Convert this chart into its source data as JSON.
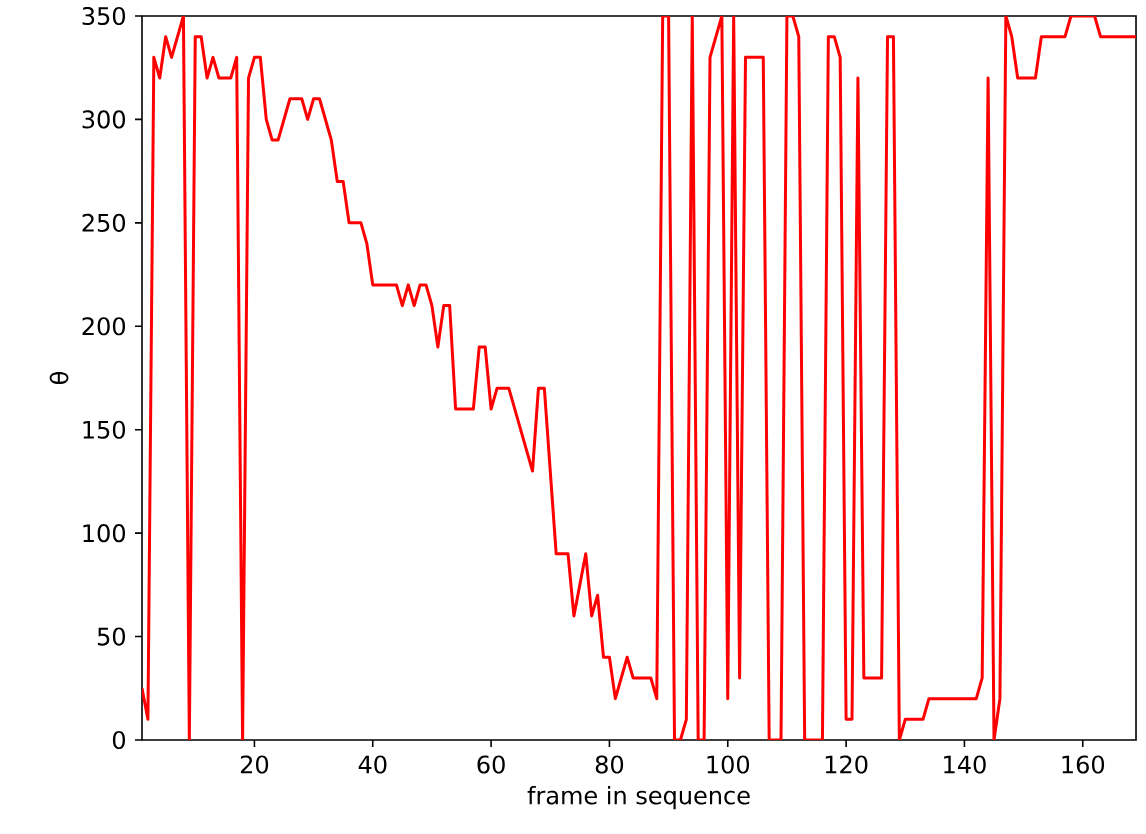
{
  "chart_data": {
    "type": "line",
    "xlabel": "frame in sequence",
    "ylabel": "θ",
    "x": [
      1,
      2,
      3,
      4,
      5,
      6,
      8,
      9,
      10,
      11,
      12,
      13,
      14,
      16,
      17,
      18,
      19,
      20,
      21,
      22,
      23,
      24,
      26,
      28,
      29,
      30,
      31,
      33,
      34,
      35,
      36,
      38,
      39,
      40,
      44,
      45,
      46,
      47,
      48,
      49,
      50,
      51,
      52,
      53,
      54,
      57,
      58,
      59,
      60,
      61,
      63,
      67,
      68,
      69,
      71,
      73,
      74,
      76,
      77,
      78,
      79,
      80,
      81,
      83,
      84,
      87,
      88,
      89,
      90,
      91,
      92,
      93,
      94,
      95,
      96,
      97,
      99,
      100,
      101,
      102,
      103,
      106,
      107,
      109,
      110,
      111,
      112,
      113,
      116,
      117,
      118,
      119,
      120,
      121,
      122,
      123,
      126,
      127,
      128,
      129,
      130,
      133,
      134,
      142,
      143,
      144,
      145,
      146,
      147,
      148,
      149,
      152,
      153,
      157,
      158,
      162,
      163,
      169
    ],
    "series": [
      {
        "color": "#ff0000",
        "values": [
          25,
          10,
          330,
          320,
          340,
          330,
          350,
          0,
          340,
          340,
          320,
          330,
          320,
          320,
          330,
          0,
          320,
          330,
          330,
          300,
          290,
          290,
          310,
          310,
          300,
          310,
          310,
          290,
          270,
          270,
          250,
          250,
          240,
          220,
          220,
          210,
          220,
          210,
          220,
          220,
          210,
          190,
          210,
          210,
          160,
          160,
          190,
          190,
          160,
          170,
          170,
          130,
          170,
          170,
          90,
          90,
          60,
          90,
          60,
          70,
          40,
          40,
          20,
          40,
          30,
          30,
          20,
          350,
          350,
          0,
          0,
          10,
          350,
          0,
          0,
          330,
          350,
          20,
          350,
          30,
          330,
          330,
          0,
          0,
          350,
          350,
          340,
          0,
          0,
          340,
          340,
          330,
          10,
          10,
          320,
          30,
          30,
          340,
          340,
          0,
          10,
          10,
          20,
          20,
          30,
          320,
          0,
          20,
          350,
          340,
          320,
          320,
          340,
          340,
          350,
          350,
          340,
          340
        ]
      }
    ],
    "xlim": [
      1,
      169
    ],
    "ylim": [
      0,
      350
    ],
    "xticks": [
      20,
      40,
      60,
      80,
      100,
      120,
      140,
      160
    ],
    "yticks": [
      0,
      50,
      100,
      150,
      200,
      250,
      300,
      350
    ],
    "line_style": "solid",
    "marker": "none"
  }
}
